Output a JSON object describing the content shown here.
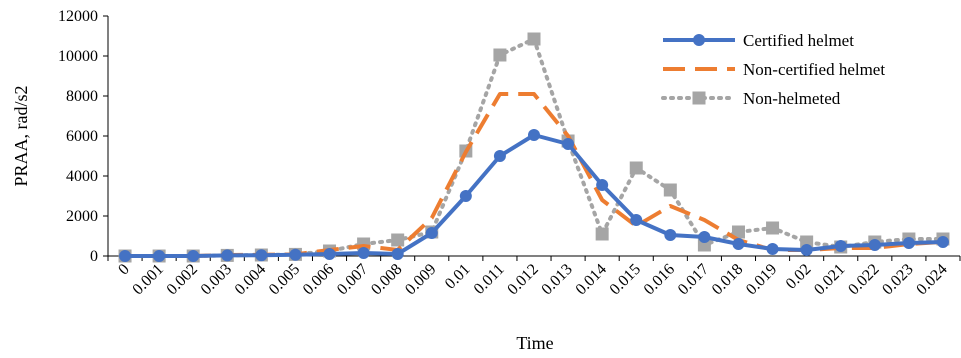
{
  "chart_data": {
    "type": "line",
    "title": "",
    "xlabel": "Time",
    "ylabel": "PRAA, rad/s2",
    "categories": [
      "0",
      "0.001",
      "0.002",
      "0.003",
      "0.004",
      "0.005",
      "0.006",
      "0.007",
      "0.008",
      "0.009",
      "0.01",
      "0.011",
      "0.012",
      "0.013",
      "0.014",
      "0.015",
      "0.016",
      "0.017",
      "0.018",
      "0.019",
      "0.02",
      "0.021",
      "0.022",
      "0.023",
      "0.024"
    ],
    "ylim": [
      0,
      12000
    ],
    "yticks": [
      "0",
      "2000",
      "4000",
      "6000",
      "8000",
      "10000",
      "12000"
    ],
    "grid": false,
    "legend_position": "top-right",
    "series": [
      {
        "name": "Certified helmet",
        "color": "#4472C4",
        "style": "solid-circle",
        "values": [
          0,
          0,
          0,
          30,
          40,
          60,
          100,
          150,
          100,
          1150,
          3000,
          5000,
          6050,
          5600,
          3550,
          1800,
          1050,
          950,
          600,
          350,
          300,
          500,
          550,
          650,
          700
        ]
      },
      {
        "name": "Non-certified helmet",
        "color": "#ED7D31",
        "style": "dashed",
        "values": [
          0,
          0,
          0,
          50,
          60,
          80,
          300,
          500,
          300,
          1900,
          5200,
          8100,
          8100,
          6000,
          2800,
          1500,
          2500,
          1800,
          800,
          300,
          300,
          400,
          400,
          600,
          700
        ]
      },
      {
        "name": "Non-helmeted",
        "color": "#A5A5A5",
        "style": "dotted-square",
        "values": [
          0,
          0,
          0,
          30,
          50,
          80,
          250,
          600,
          800,
          1200,
          5250,
          10050,
          10850,
          5750,
          1100,
          4400,
          3300,
          550,
          1200,
          1400,
          700,
          450,
          700,
          850,
          850
        ]
      }
    ]
  }
}
